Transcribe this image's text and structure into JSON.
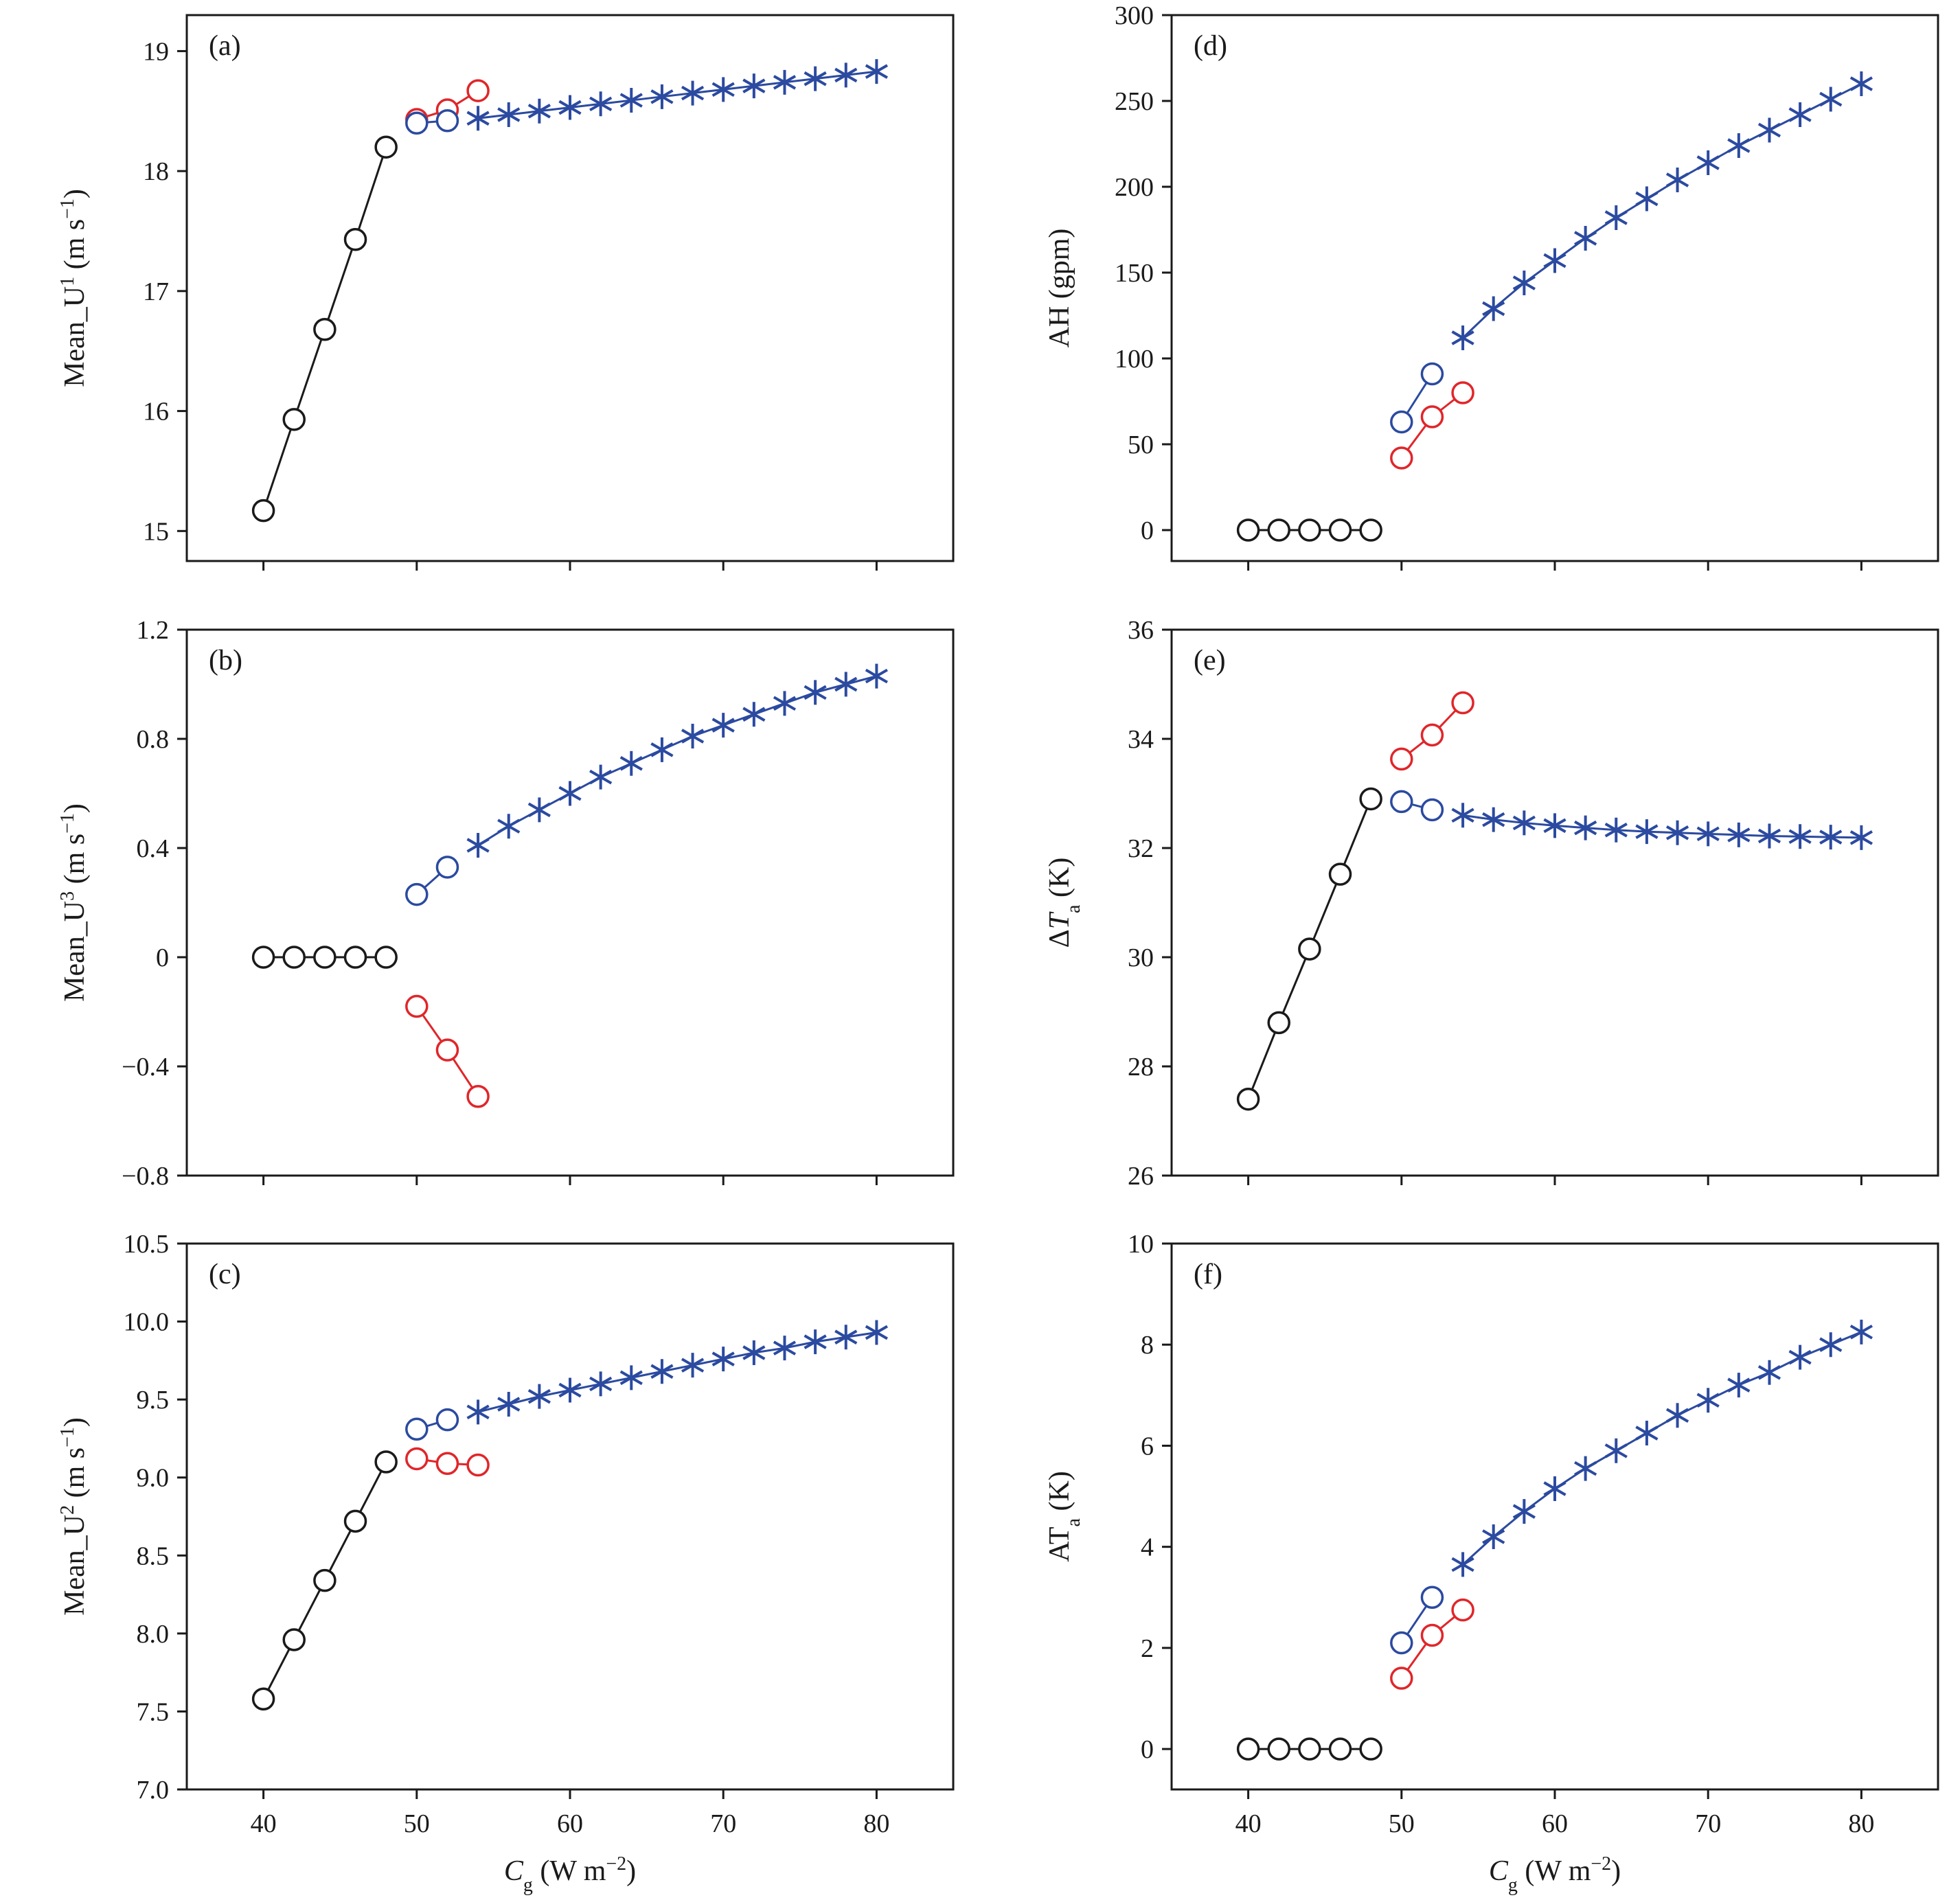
{
  "colors": {
    "black": "#1a1a1a",
    "red": "#e0262a",
    "blue": "#2b4aa0",
    "background": "#ffffff"
  },
  "chart_data": [
    {
      "panel": "(a)",
      "type": "line",
      "ylabel": {
        "main": "Mean_U",
        "sup": "1",
        "unit_pre": " (m s",
        "unit_sup": "−1",
        "unit_post": ")"
      },
      "xlim": [
        35,
        85
      ],
      "ylim": [
        14.75,
        19.3
      ],
      "xticks": [
        40,
        50,
        60,
        70,
        80
      ],
      "yticks": [
        15,
        16,
        17,
        18,
        19
      ],
      "ytick_labels": [
        "15",
        "16",
        "17",
        "18",
        "19"
      ],
      "show_xticklabels": false,
      "series": [
        {
          "color": "black",
          "marker": "circle",
          "x": [
            40,
            42,
            44,
            46,
            48
          ],
          "y": [
            15.17,
            15.93,
            16.68,
            17.43,
            18.2
          ]
        },
        {
          "color": "red",
          "marker": "circle",
          "x": [
            50,
            52,
            54
          ],
          "y": [
            18.43,
            18.51,
            18.67
          ]
        },
        {
          "color": "blue",
          "marker": "circle",
          "x": [
            50,
            52
          ],
          "y": [
            18.4,
            18.42
          ]
        },
        {
          "color": "blue",
          "marker": "star",
          "x": [
            54,
            56,
            58,
            60,
            62,
            64,
            66,
            68,
            70,
            72,
            74,
            76,
            78,
            80
          ],
          "y": [
            18.44,
            18.47,
            18.5,
            18.53,
            18.56,
            18.59,
            18.62,
            18.65,
            18.68,
            18.71,
            18.74,
            18.77,
            18.8,
            18.83
          ]
        }
      ]
    },
    {
      "panel": "(d)",
      "type": "line",
      "ylabel": {
        "main": "AH (gpm)"
      },
      "xlim": [
        35,
        85
      ],
      "ylim": [
        -18,
        300
      ],
      "xticks": [
        40,
        50,
        60,
        70,
        80
      ],
      "yticks": [
        0,
        50,
        100,
        150,
        200,
        250,
        300
      ],
      "ytick_labels": [
        "0",
        "50",
        "100",
        "150",
        "200",
        "250",
        "300"
      ],
      "show_xticklabels": false,
      "series": [
        {
          "color": "black",
          "marker": "circle",
          "x": [
            40,
            42,
            44,
            46,
            48
          ],
          "y": [
            0,
            0,
            0,
            0,
            0
          ]
        },
        {
          "color": "red",
          "marker": "circle",
          "x": [
            50,
            52,
            54
          ],
          "y": [
            42,
            66,
            80
          ]
        },
        {
          "color": "blue",
          "marker": "circle",
          "x": [
            50,
            52
          ],
          "y": [
            63,
            91
          ]
        },
        {
          "color": "blue",
          "marker": "star",
          "x": [
            54,
            56,
            58,
            60,
            62,
            64,
            66,
            68,
            70,
            72,
            74,
            76,
            78,
            80
          ],
          "y": [
            112,
            129,
            144,
            157,
            170,
            182,
            193,
            204,
            214,
            224,
            233,
            242,
            251,
            260
          ]
        }
      ]
    },
    {
      "panel": "(b)",
      "type": "line",
      "ylabel": {
        "main": "Mean_U",
        "sup": "3",
        "unit_pre": " (m s",
        "unit_sup": "−1",
        "unit_post": ")"
      },
      "xlim": [
        35,
        85
      ],
      "ylim": [
        -0.8,
        1.2
      ],
      "xticks": [
        40,
        50,
        60,
        70,
        80
      ],
      "yticks": [
        -0.8,
        -0.4,
        0,
        0.4,
        0.8,
        1.2
      ],
      "ytick_labels": [
        "−0.8",
        "−0.4",
        "0",
        "0.4",
        "0.8",
        "1.2"
      ],
      "show_xticklabels": false,
      "series": [
        {
          "color": "black",
          "marker": "circle",
          "x": [
            40,
            42,
            44,
            46,
            48
          ],
          "y": [
            0,
            0,
            0,
            0,
            0
          ]
        },
        {
          "color": "red",
          "marker": "circle",
          "x": [
            50,
            52,
            54
          ],
          "y": [
            -0.18,
            -0.34,
            -0.51
          ]
        },
        {
          "color": "blue",
          "marker": "circle",
          "x": [
            50,
            52
          ],
          "y": [
            0.23,
            0.33
          ]
        },
        {
          "color": "blue",
          "marker": "star",
          "x": [
            54,
            56,
            58,
            60,
            62,
            64,
            66,
            68,
            70,
            72,
            74,
            76,
            78,
            80
          ],
          "y": [
            0.41,
            0.48,
            0.54,
            0.6,
            0.66,
            0.71,
            0.76,
            0.81,
            0.85,
            0.89,
            0.93,
            0.97,
            1.0,
            1.03
          ]
        }
      ]
    },
    {
      "panel": "(e)",
      "type": "line",
      "ylabel": {
        "main": "Δ",
        "italic": "T",
        "sub": "a",
        "unit": " (K)"
      },
      "xlim": [
        35,
        85
      ],
      "ylim": [
        26,
        36
      ],
      "xticks": [
        40,
        50,
        60,
        70,
        80
      ],
      "yticks": [
        26,
        28,
        30,
        32,
        34,
        36
      ],
      "ytick_labels": [
        "26",
        "28",
        "30",
        "32",
        "34",
        "36"
      ],
      "show_xticklabels": false,
      "series": [
        {
          "color": "black",
          "marker": "circle",
          "x": [
            40,
            42,
            44,
            46,
            48
          ],
          "y": [
            27.4,
            28.8,
            30.15,
            31.52,
            32.9
          ]
        },
        {
          "color": "red",
          "marker": "circle",
          "x": [
            50,
            52,
            54
          ],
          "y": [
            33.63,
            34.07,
            34.66
          ]
        },
        {
          "color": "blue",
          "marker": "circle",
          "x": [
            50,
            52
          ],
          "y": [
            32.85,
            32.7
          ]
        },
        {
          "color": "blue",
          "marker": "star",
          "x": [
            54,
            56,
            58,
            60,
            62,
            64,
            66,
            68,
            70,
            72,
            74,
            76,
            78,
            80
          ],
          "y": [
            32.6,
            32.52,
            32.46,
            32.41,
            32.37,
            32.33,
            32.3,
            32.28,
            32.26,
            32.24,
            32.22,
            32.21,
            32.2,
            32.19
          ]
        }
      ]
    },
    {
      "panel": "(c)",
      "type": "line",
      "xlabel": {
        "italic": "C",
        "sub": "g",
        "unit_pre": " (W m",
        "unit_sup": "−2",
        "unit_post": ")"
      },
      "ylabel": {
        "main": "Mean_U",
        "sup": "2",
        "unit_pre": " (m s",
        "unit_sup": "−1",
        "unit_post": ")"
      },
      "xlim": [
        35,
        85
      ],
      "ylim": [
        7.0,
        10.5
      ],
      "xticks": [
        40,
        50,
        60,
        70,
        80
      ],
      "xtick_labels": [
        "40",
        "50",
        "60",
        "70",
        "80"
      ],
      "yticks": [
        7.0,
        7.5,
        8.0,
        8.5,
        9.0,
        9.5,
        10.0,
        10.5
      ],
      "ytick_labels": [
        "7.0",
        "7.5",
        "8.0",
        "8.5",
        "9.0",
        "9.5",
        "10.0",
        "10.5"
      ],
      "show_xticklabels": true,
      "series": [
        {
          "color": "black",
          "marker": "circle",
          "x": [
            40,
            42,
            44,
            46,
            48
          ],
          "y": [
            7.58,
            7.96,
            8.34,
            8.72,
            9.1
          ]
        },
        {
          "color": "red",
          "marker": "circle",
          "x": [
            50,
            52,
            54
          ],
          "y": [
            9.12,
            9.09,
            9.08
          ]
        },
        {
          "color": "blue",
          "marker": "circle",
          "x": [
            50,
            52
          ],
          "y": [
            9.31,
            9.37
          ]
        },
        {
          "color": "blue",
          "marker": "star",
          "x": [
            54,
            56,
            58,
            60,
            62,
            64,
            66,
            68,
            70,
            72,
            74,
            76,
            78,
            80
          ],
          "y": [
            9.42,
            9.47,
            9.52,
            9.56,
            9.6,
            9.64,
            9.68,
            9.72,
            9.76,
            9.8,
            9.83,
            9.87,
            9.9,
            9.93
          ]
        }
      ]
    },
    {
      "panel": "(f)",
      "type": "line",
      "xlabel": {
        "italic": "C",
        "sub": "g",
        "unit_pre": " (W m",
        "unit_sup": "−2",
        "unit_post": ")"
      },
      "ylabel": {
        "main": "AT",
        "sub": "a",
        "unit": " (K)"
      },
      "xlim": [
        35,
        85
      ],
      "ylim": [
        -0.8,
        10
      ],
      "xticks": [
        40,
        50,
        60,
        70,
        80
      ],
      "xtick_labels": [
        "40",
        "50",
        "60",
        "70",
        "80"
      ],
      "yticks": [
        0,
        2,
        4,
        6,
        8,
        10
      ],
      "ytick_labels": [
        "0",
        "2",
        "4",
        "6",
        "8",
        "10"
      ],
      "show_xticklabels": true,
      "series": [
        {
          "color": "black",
          "marker": "circle",
          "x": [
            40,
            42,
            44,
            46,
            48
          ],
          "y": [
            0,
            0,
            0,
            0,
            0
          ]
        },
        {
          "color": "red",
          "marker": "circle",
          "x": [
            50,
            52,
            54
          ],
          "y": [
            1.4,
            2.25,
            2.75
          ]
        },
        {
          "color": "blue",
          "marker": "circle",
          "x": [
            50,
            52
          ],
          "y": [
            2.1,
            3.0
          ]
        },
        {
          "color": "blue",
          "marker": "star",
          "x": [
            54,
            56,
            58,
            60,
            62,
            64,
            66,
            68,
            70,
            72,
            74,
            76,
            78,
            80
          ],
          "y": [
            3.65,
            4.2,
            4.7,
            5.15,
            5.55,
            5.9,
            6.25,
            6.6,
            6.9,
            7.2,
            7.45,
            7.75,
            8.0,
            8.25
          ]
        }
      ]
    }
  ]
}
